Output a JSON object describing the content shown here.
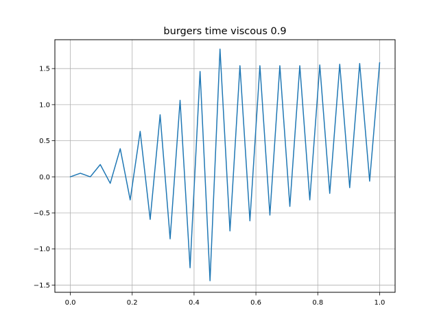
{
  "chart_data": {
    "type": "line",
    "title": "burgers time viscous 0.9",
    "xlabel": "",
    "ylabel": "",
    "xlim": [
      -0.05,
      1.05
    ],
    "ylim": [
      -1.6,
      1.9
    ],
    "xticks": [
      0.0,
      0.2,
      0.4,
      0.6,
      0.8,
      1.0
    ],
    "xtick_labels": [
      "0.0",
      "0.2",
      "0.4",
      "0.6",
      "0.8",
      "1.0"
    ],
    "yticks": [
      -1.5,
      -1.0,
      -0.5,
      0.0,
      0.5,
      1.0,
      1.5
    ],
    "ytick_labels": [
      "−1.5",
      "−1.0",
      "−0.5",
      "0.0",
      "0.5",
      "1.0",
      "1.5"
    ],
    "grid": true,
    "legend": "none",
    "series": [
      {
        "color": "#1f77b4",
        "x": [
          0.0,
          0.0323,
          0.0645,
          0.0968,
          0.129,
          0.1613,
          0.1935,
          0.2258,
          0.2581,
          0.2903,
          0.3226,
          0.3548,
          0.3871,
          0.4194,
          0.4516,
          0.4839,
          0.5161,
          0.5484,
          0.5806,
          0.6129,
          0.6452,
          0.6774,
          0.7097,
          0.7419,
          0.7742,
          0.8065,
          0.8387,
          0.871,
          0.9032,
          0.9355,
          0.9677,
          1.0
        ],
        "y": [
          0.0,
          0.05,
          0.0,
          0.17,
          -0.09,
          0.39,
          -0.32,
          0.63,
          -0.59,
          0.86,
          -0.86,
          1.06,
          -1.26,
          1.46,
          -1.44,
          1.77,
          -0.75,
          1.54,
          -0.61,
          1.54,
          -0.53,
          1.54,
          -0.41,
          1.54,
          -0.32,
          1.55,
          -0.23,
          1.56,
          -0.15,
          1.57,
          -0.06,
          1.58
        ]
      }
    ]
  }
}
